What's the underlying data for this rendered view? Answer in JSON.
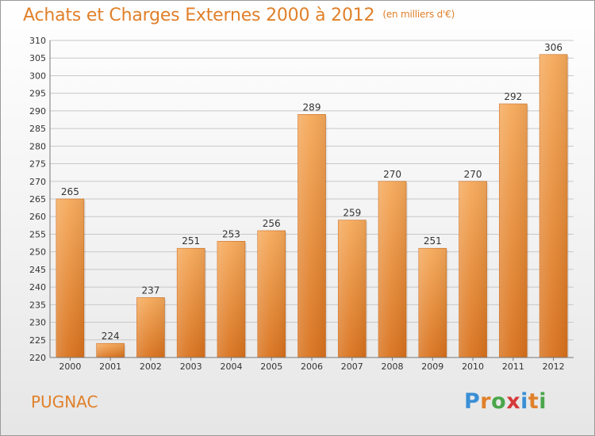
{
  "title": "Achats et Charges Externes 2000 à 2012",
  "subtitle": "(en milliers d'€)",
  "commune": "PUGNAC",
  "logo": {
    "text": "Proxiti",
    "letter_colors": [
      "#3a8fd6",
      "#e0802a",
      "#4aa64a",
      "#d63a3a",
      "#3a8fd6",
      "#e0802a",
      "#4aa64a"
    ]
  },
  "colors": {
    "accent": "#e0802a",
    "bar_top": "#f5a95a",
    "bar_bottom": "#d8711c",
    "grid": "#c8c8c8"
  },
  "chart_data": {
    "type": "bar",
    "categories": [
      "2000",
      "2001",
      "2002",
      "2003",
      "2004",
      "2005",
      "2006",
      "2007",
      "2008",
      "2009",
      "2010",
      "2011",
      "2012"
    ],
    "values": [
      265,
      224,
      237,
      251,
      253,
      256,
      289,
      259,
      270,
      251,
      270,
      292,
      306
    ],
    "ylim": [
      220,
      310
    ],
    "ytick_step": 5,
    "yticks": [
      "220",
      "225",
      "230",
      "235",
      "240",
      "245",
      "250",
      "255",
      "260",
      "265",
      "270",
      "275",
      "280",
      "285",
      "290",
      "295",
      "300",
      "305",
      "310"
    ],
    "grid": true,
    "xlabel": "",
    "ylabel": ""
  }
}
